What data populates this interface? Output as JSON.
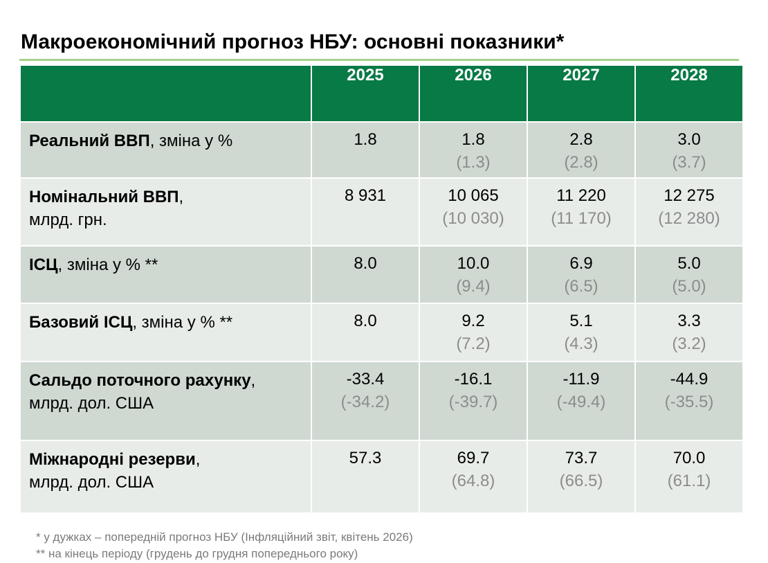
{
  "title": "Макроекономічний прогноз НБУ: основні показники*",
  "colors": {
    "header_bg": "#077a45",
    "row_shade": "#cfd9d2",
    "row_light": "#e8ece9",
    "title_rule": "#a6d08a",
    "previous_value": "#8c8c8c"
  },
  "table": {
    "years": [
      "2025",
      "2026",
      "2027",
      "2028"
    ],
    "rows": [
      {
        "label_bold": "Реальний ВВП",
        "label_rest": ", зміна у %",
        "label_line2": "",
        "values": [
          "1.8",
          "1.8",
          "2.8",
          "3.0"
        ],
        "previous": [
          "",
          "(1.3)",
          "(2.8)",
          "(3.7)"
        ]
      },
      {
        "label_bold": "Номінальний ВВП",
        "label_rest": ",",
        "label_line2": "млрд. грн.",
        "values": [
          "8 931",
          "10 065",
          "11 220",
          "12 275"
        ],
        "previous": [
          "",
          "(10 030)",
          "(11 170)",
          "(12 280)"
        ]
      },
      {
        "label_bold": "ІСЦ",
        "label_rest": ", зміна у % **",
        "label_line2": "",
        "values": [
          "8.0",
          "10.0",
          "6.9",
          "5.0"
        ],
        "previous": [
          "",
          "(9.4)",
          "(6.5)",
          "(5.0)"
        ]
      },
      {
        "label_bold": "Базовий ІСЦ",
        "label_rest": ", зміна у % **",
        "label_line2": "",
        "values": [
          "8.0",
          "9.2",
          "5.1",
          "3.3"
        ],
        "previous": [
          "",
          "(7.2)",
          "(4.3)",
          "(3.2)"
        ]
      },
      {
        "label_bold": "Сальдо поточного рахунку",
        "label_rest": ",",
        "label_line2": "млрд. дол. США",
        "values": [
          "-33.4",
          "-16.1",
          "-11.9",
          "-44.9"
        ],
        "previous": [
          "(-34.2)",
          "(-39.7)",
          "(-49.4)",
          "(-35.5)"
        ]
      },
      {
        "label_bold": "Міжнародні резерви",
        "label_rest": ",",
        "label_line2": "млрд. дол. США",
        "values": [
          "57.3",
          "69.7",
          "73.7",
          "70.0"
        ],
        "previous": [
          "",
          "(64.8)",
          "(66.5)",
          "(61.1)"
        ]
      }
    ]
  },
  "footnotes": [
    "* у дужках – попередній прогноз НБУ (Інфляційний звіт, квітень 2026)",
    "** на кінець періоду (грудень до грудня попереднього року)"
  ]
}
